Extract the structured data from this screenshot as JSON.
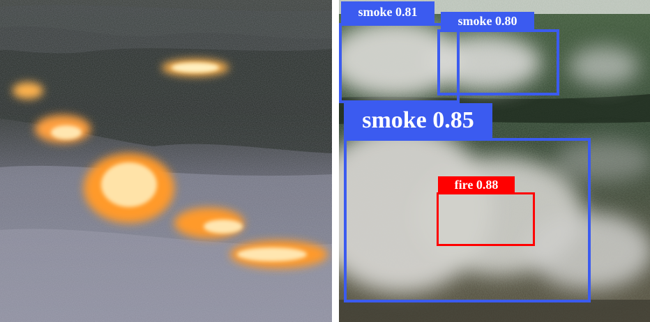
{
  "detections": [
    {
      "id": "smoke-1",
      "label": "smoke 0.81",
      "class": "smoke",
      "color": "#3b5bf0"
    },
    {
      "id": "smoke-2",
      "label": "smoke 0.80",
      "class": "smoke",
      "color": "#3b5bf0"
    },
    {
      "id": "smoke-3",
      "label": "smoke 0.85",
      "class": "smoke",
      "color": "#3b5bf0"
    },
    {
      "id": "fire-1",
      "label": "fire 0.88",
      "class": "fire",
      "color": "#ff0000"
    }
  ],
  "colors": {
    "smoke_box": "#3b5bf0",
    "fire_box": "#ff0000",
    "label_text": "#ffffff"
  }
}
